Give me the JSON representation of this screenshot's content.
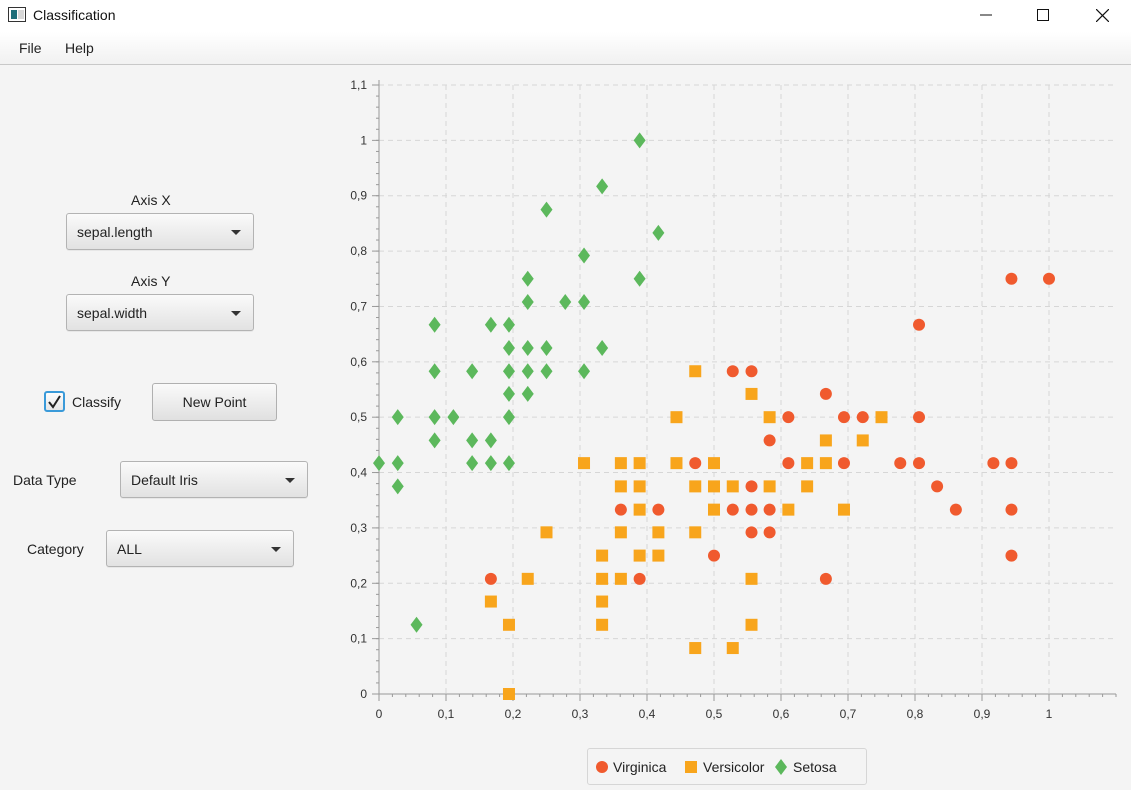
{
  "window": {
    "title": "Classification"
  },
  "menu": {
    "items": [
      "File",
      "Help"
    ]
  },
  "controls": {
    "axis_x_label": "Axis X",
    "axis_x_value": "sepal.length",
    "axis_y_label": "Axis Y",
    "axis_y_value": "sepal.width",
    "classify_label": "Classify",
    "classify_checked": true,
    "new_point_label": "New Point",
    "data_type_label": "Data Type",
    "data_type_value": "Default Iris",
    "category_label": "Category",
    "category_value": "ALL"
  },
  "colors": {
    "virginica": "#f05a2e",
    "versicolor": "#f8a51c",
    "setosa": "#5cb85c",
    "accent": "#3a9ad9"
  },
  "chart_data": {
    "type": "scatter",
    "xlim": [
      0,
      1.1
    ],
    "ylim": [
      0,
      1.1
    ],
    "x_ticks": [
      "0",
      "0,1",
      "0,2",
      "0,3",
      "0,4",
      "0,5",
      "0,6",
      "0,7",
      "0,8",
      "0,9",
      "1"
    ],
    "y_ticks": [
      "0",
      "0,1",
      "0,2",
      "0,3",
      "0,4",
      "0,5",
      "0,6",
      "0,7",
      "0,8",
      "0,9",
      "1",
      "1,1"
    ],
    "grid": true,
    "legend_position": "bottom",
    "series": [
      {
        "name": "Virginica",
        "marker": "circle",
        "points": [
          [
            0.944,
            0.75
          ],
          [
            1.0,
            0.75
          ],
          [
            0.806,
            0.667
          ],
          [
            0.528,
            0.583
          ],
          [
            0.556,
            0.583
          ],
          [
            0.667,
            0.542
          ],
          [
            0.611,
            0.5
          ],
          [
            0.694,
            0.5
          ],
          [
            0.722,
            0.5
          ],
          [
            0.806,
            0.5
          ],
          [
            0.583,
            0.458
          ],
          [
            0.472,
            0.417
          ],
          [
            0.611,
            0.417
          ],
          [
            0.694,
            0.417
          ],
          [
            0.778,
            0.417
          ],
          [
            0.806,
            0.417
          ],
          [
            0.917,
            0.417
          ],
          [
            0.944,
            0.417
          ],
          [
            0.556,
            0.375
          ],
          [
            0.833,
            0.375
          ],
          [
            0.361,
            0.333
          ],
          [
            0.417,
            0.333
          ],
          [
            0.528,
            0.333
          ],
          [
            0.556,
            0.333
          ],
          [
            0.583,
            0.333
          ],
          [
            0.861,
            0.333
          ],
          [
            0.944,
            0.333
          ],
          [
            0.556,
            0.292
          ],
          [
            0.583,
            0.292
          ],
          [
            0.5,
            0.25
          ],
          [
            0.944,
            0.25
          ],
          [
            0.167,
            0.208
          ],
          [
            0.389,
            0.208
          ],
          [
            0.667,
            0.208
          ]
        ]
      },
      {
        "name": "Versicolor",
        "marker": "square",
        "points": [
          [
            0.472,
            0.583
          ],
          [
            0.556,
            0.542
          ],
          [
            0.444,
            0.5
          ],
          [
            0.583,
            0.5
          ],
          [
            0.75,
            0.5
          ],
          [
            0.667,
            0.458
          ],
          [
            0.722,
            0.458
          ],
          [
            0.306,
            0.417
          ],
          [
            0.361,
            0.417
          ],
          [
            0.389,
            0.417
          ],
          [
            0.444,
            0.417
          ],
          [
            0.5,
            0.417
          ],
          [
            0.639,
            0.417
          ],
          [
            0.667,
            0.417
          ],
          [
            0.361,
            0.375
          ],
          [
            0.389,
            0.375
          ],
          [
            0.472,
            0.375
          ],
          [
            0.5,
            0.375
          ],
          [
            0.528,
            0.375
          ],
          [
            0.583,
            0.375
          ],
          [
            0.639,
            0.375
          ],
          [
            0.389,
            0.333
          ],
          [
            0.5,
            0.333
          ],
          [
            0.611,
            0.333
          ],
          [
            0.694,
            0.333
          ],
          [
            0.25,
            0.292
          ],
          [
            0.361,
            0.292
          ],
          [
            0.417,
            0.292
          ],
          [
            0.472,
            0.292
          ],
          [
            0.333,
            0.25
          ],
          [
            0.389,
            0.25
          ],
          [
            0.417,
            0.25
          ],
          [
            0.222,
            0.208
          ],
          [
            0.333,
            0.208
          ],
          [
            0.361,
            0.208
          ],
          [
            0.556,
            0.208
          ],
          [
            0.167,
            0.167
          ],
          [
            0.333,
            0.167
          ],
          [
            0.194,
            0.125
          ],
          [
            0.333,
            0.125
          ],
          [
            0.556,
            0.125
          ],
          [
            0.472,
            0.083
          ],
          [
            0.528,
            0.083
          ],
          [
            0.194,
            0.0
          ]
        ]
      },
      {
        "name": "Setosa",
        "marker": "diamond",
        "points": [
          [
            0.389,
            1.0
          ],
          [
            0.333,
            0.917
          ],
          [
            0.25,
            0.875
          ],
          [
            0.417,
            0.833
          ],
          [
            0.306,
            0.792
          ],
          [
            0.222,
            0.75
          ],
          [
            0.389,
            0.75
          ],
          [
            0.222,
            0.708
          ],
          [
            0.278,
            0.708
          ],
          [
            0.306,
            0.708
          ],
          [
            0.083,
            0.667
          ],
          [
            0.167,
            0.667
          ],
          [
            0.194,
            0.667
          ],
          [
            0.194,
            0.625
          ],
          [
            0.222,
            0.625
          ],
          [
            0.25,
            0.625
          ],
          [
            0.333,
            0.625
          ],
          [
            0.083,
            0.583
          ],
          [
            0.139,
            0.583
          ],
          [
            0.194,
            0.583
          ],
          [
            0.222,
            0.583
          ],
          [
            0.25,
            0.583
          ],
          [
            0.306,
            0.583
          ],
          [
            0.194,
            0.542
          ],
          [
            0.222,
            0.542
          ],
          [
            0.028,
            0.5
          ],
          [
            0.083,
            0.5
          ],
          [
            0.111,
            0.5
          ],
          [
            0.194,
            0.5
          ],
          [
            0.083,
            0.458
          ],
          [
            0.139,
            0.458
          ],
          [
            0.167,
            0.458
          ],
          [
            0.0,
            0.417
          ],
          [
            0.028,
            0.417
          ],
          [
            0.139,
            0.417
          ],
          [
            0.167,
            0.417
          ],
          [
            0.194,
            0.417
          ],
          [
            0.028,
            0.375
          ],
          [
            0.056,
            0.125
          ]
        ]
      }
    ]
  }
}
